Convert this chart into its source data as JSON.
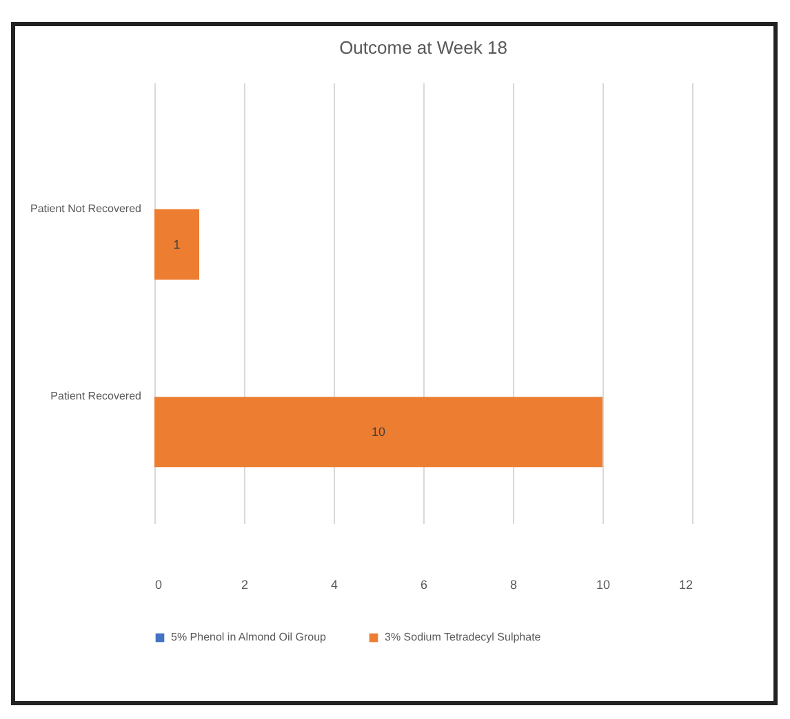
{
  "chart_data": {
    "type": "bar",
    "orientation": "horizontal",
    "title": "Outcome at Week 18",
    "categories": [
      "Patient Not Recovered",
      "Patient Recovered"
    ],
    "series": [
      {
        "name": "5% Phenol in Almond Oil Group",
        "color": "#4472c4",
        "values": [
          null,
          null
        ]
      },
      {
        "name": "3% Sodium Tetradecyl Sulphate",
        "color": "#ed7d31",
        "values": [
          1,
          10
        ]
      }
    ],
    "xlim": [
      0,
      12
    ],
    "xticks": [
      0,
      2,
      4,
      6,
      8,
      10,
      12
    ],
    "grid": "x",
    "legend": "bottom",
    "data_labels": true
  }
}
